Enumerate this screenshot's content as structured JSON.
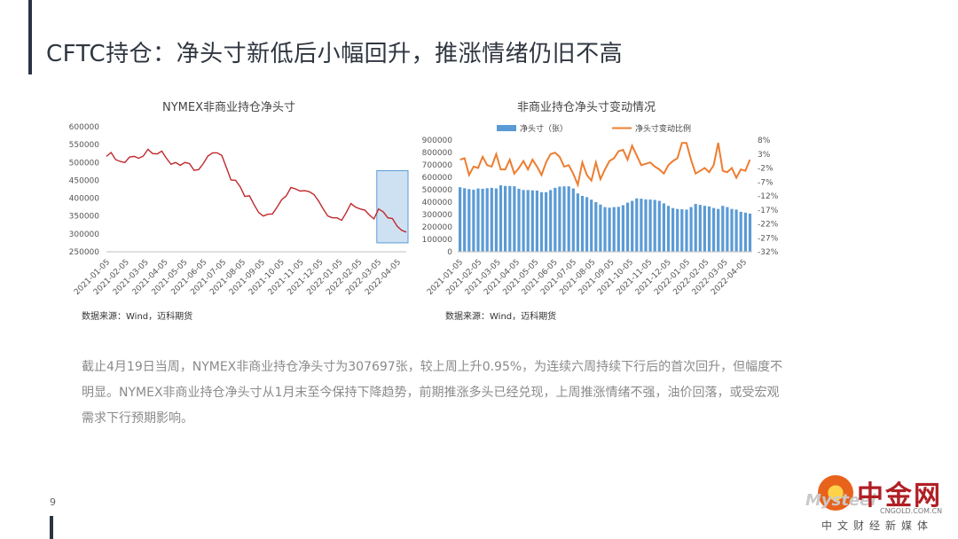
{
  "page_title": "CFTC持仓：净头寸新低后小幅回升，推涨情绪仍旧不高",
  "page_number": "9",
  "paragraph": "截止4月19日当周，NYMEX非商业持仓净头寸为307697张，较上周上升0.95%，为连续六周持续下行后的首次回升，但幅度不明显。NYMEX非商业持仓净头寸从1月末至今保持下降趋势，前期推涨多头已经兑现，上周推涨情绪不强，油价回落，或受宏观需求下行预期影响。",
  "logo": {
    "watermark": "Mysteel",
    "name": "中金网",
    "domain": "CNGOLD.COM.CN",
    "slogan": "中文财经新媒体"
  },
  "colors": {
    "line_red": "#c0282d",
    "bar_blue": "#5b9bd5",
    "line_orange": "#ed7d31",
    "highlight": "#bdd7ee"
  },
  "chart_data": [
    {
      "type": "line",
      "title": "NYMEX非商业持仓净头寸",
      "source": "数据来源：Wind，迈科期货",
      "ylim": [
        250000,
        600000
      ],
      "yticks": [
        "600000",
        "550000",
        "500000",
        "450000",
        "400000",
        "350000",
        "300000",
        "250000"
      ],
      "ytick_values": [
        600000,
        550000,
        500000,
        450000,
        400000,
        350000,
        300000,
        250000
      ],
      "xticks": [
        "2021-01-05",
        "2021-02-05",
        "2021-03-05",
        "2021-04-05",
        "2021-05-05",
        "2021-06-05",
        "2021-07-05",
        "2021-08-05",
        "2021-09-05",
        "2021-10-05",
        "2021-11-05",
        "2021-12-05",
        "2022-01-05",
        "2022-02-05",
        "2022-03-05",
        "2022-04-05"
      ],
      "values": [
        517000,
        528000,
        508000,
        503000,
        500000,
        515000,
        517000,
        512000,
        518000,
        537000,
        525000,
        524000,
        532000,
        512000,
        495000,
        500000,
        492000,
        500000,
        497000,
        478000,
        480000,
        497000,
        518000,
        527000,
        527000,
        520000,
        486000,
        451000,
        450000,
        432000,
        405000,
        407000,
        382000,
        360000,
        350000,
        355000,
        356000,
        375000,
        396000,
        407000,
        430000,
        426000,
        420000,
        421000,
        418000,
        410000,
        392000,
        370000,
        350000,
        345000,
        345000,
        338000,
        360000,
        385000,
        375000,
        370000,
        367000,
        353000,
        342000,
        370000,
        362000,
        345000,
        343000,
        322000,
        310000,
        305000
      ],
      "highlight": {
        "from_index": 59,
        "to_index": 65,
        "y_from": 275000,
        "y_to": 477000
      },
      "grid": false
    },
    {
      "type": "bar+line",
      "title": "非商业持仓净头寸变动情况",
      "source": "数据来源：Wind，迈科期货",
      "legend_position": "top",
      "xticks": [
        "2021-01-05",
        "2021-02-05",
        "2021-03-05",
        "2021-04-05",
        "2021-05-05",
        "2021-06-05",
        "2021-07-05",
        "2021-08-05",
        "2021-09-05",
        "2021-10-05",
        "2021-11-05",
        "2021-12-05",
        "2022-01-05",
        "2022-02-05",
        "2022-03-05",
        "2022-04-05"
      ],
      "left_axis": {
        "ylim": [
          0,
          900000
        ],
        "ticks": [
          "900000",
          "800000",
          "700000",
          "600000",
          "500000",
          "400000",
          "300000",
          "200000",
          "100000",
          "0"
        ],
        "tick_values": [
          900000,
          800000,
          700000,
          600000,
          500000,
          400000,
          300000,
          200000,
          100000,
          0
        ]
      },
      "right_axis": {
        "ylim": [
          -32,
          8
        ],
        "ticks": [
          "8%",
          "3%",
          "-2%",
          "-7%",
          "-12%",
          "-17%",
          "-22%",
          "-27%",
          "-32%"
        ],
        "tick_values": [
          8,
          3,
          -2,
          -7,
          -12,
          -17,
          -22,
          -27,
          -32
        ]
      },
      "series": [
        {
          "name": "净头寸（张）",
          "type": "bar",
          "axis": "left",
          "values": [
            520000,
            512000,
            505000,
            500000,
            510000,
            508000,
            512000,
            515000,
            510000,
            536000,
            530000,
            530000,
            528000,
            508000,
            498000,
            497000,
            495000,
            493000,
            480000,
            480000,
            497000,
            515000,
            525000,
            527000,
            527000,
            510000,
            470000,
            450000,
            440000,
            420000,
            400000,
            380000,
            360000,
            355000,
            360000,
            362000,
            375000,
            396000,
            410000,
            430000,
            428000,
            422000,
            421000,
            418000,
            410000,
            390000,
            370000,
            352000,
            345000,
            343000,
            340000,
            360000,
            385000,
            378000,
            370000,
            365000,
            353000,
            345000,
            370000,
            360000,
            345000,
            340000,
            322000,
            315000,
            308000
          ]
        },
        {
          "name": "净头寸变动比例",
          "type": "line",
          "axis": "right",
          "values": [
            1.0,
            1.5,
            -4.5,
            -1.5,
            -2.0,
            2.0,
            -1.0,
            -1.5,
            3.0,
            -2.5,
            -2.5,
            1.0,
            -4.0,
            -2.0,
            0.5,
            -2.5,
            1.0,
            -1.5,
            -4.5,
            0.0,
            3.0,
            3.5,
            2.0,
            -1.5,
            -1.0,
            -4.0,
            -8.0,
            0.0,
            -4.5,
            -6.5,
            0.0,
            -6.0,
            -2.5,
            0.5,
            1.5,
            4.0,
            4.5,
            1.0,
            6.0,
            2.5,
            -1.0,
            -0.5,
            0.0,
            -1.5,
            -2.5,
            -4.0,
            -1.0,
            0.5,
            1.5,
            7.0,
            7.0,
            1.0,
            -4.0,
            -3.0,
            -2.0,
            -3.5,
            -1.0,
            7.0,
            -3.0,
            -3.5,
            -2.0,
            -5.5,
            -2.5,
            -3.0,
            1.0
          ]
        }
      ]
    }
  ]
}
